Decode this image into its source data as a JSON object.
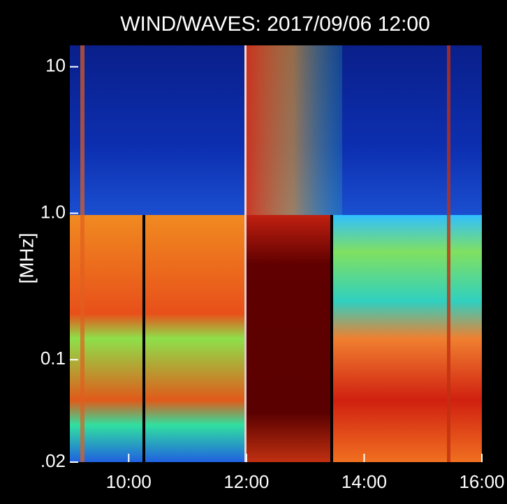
{
  "chart_data": {
    "type": "spectrogram",
    "title": "WIND/WAVES: 2017/09/06 12:00",
    "ylabel": "[MHz]",
    "ylog": true,
    "xlim": [
      9,
      16
    ],
    "xticks": [
      {
        "value": 10,
        "label": "10:00"
      },
      {
        "value": 12,
        "label": "12:00"
      },
      {
        "value": 14,
        "label": "14:00"
      },
      {
        "value": 16,
        "label": "16:00"
      }
    ],
    "ylim": [
      0.02,
      14
    ],
    "yticks": [
      {
        "value": 0.02,
        "label": ".02"
      },
      0.1,
      {
        "value": 1,
        "label": "1.0"
      },
      10
    ]
  }
}
